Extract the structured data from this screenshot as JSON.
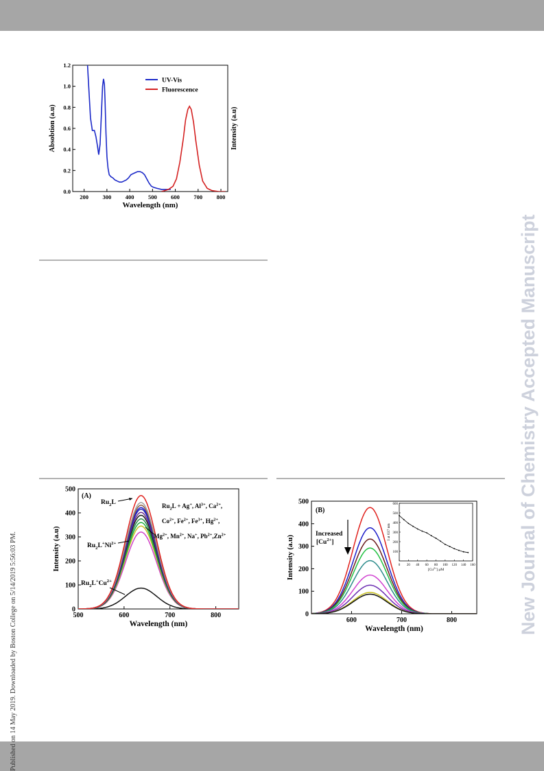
{
  "watermark": {
    "published_note": "Published on 14 May 2019. Downloaded by Boston College on 5/14/2019 5:56:03 PM.",
    "journal_side": "New Journal of Chemistry Accepted Manuscript"
  },
  "chart_data": [
    {
      "type": "line",
      "panel_label": "",
      "xlabel": "Wavelength (nm)",
      "ylabel": "Absobtion (a.u)",
      "y2label": "Intensity (a.u)",
      "xlim": [
        150,
        830
      ],
      "ylim": [
        0,
        1.2
      ],
      "xticks": [
        200,
        300,
        400,
        500,
        600,
        700,
        800
      ],
      "yticks": [
        "0.0",
        "0.2",
        "0.4",
        "0.6",
        "0.8",
        "1.0",
        "1.2"
      ],
      "legend_position": "top-right",
      "series": [
        {
          "name": "UV-Vis",
          "color": "#1a28c8",
          "x": [
            215,
            220,
            228,
            236,
            245,
            252,
            258,
            264,
            270,
            276,
            281,
            285,
            289,
            292,
            296,
            300,
            305,
            310,
            318,
            326,
            335,
            345,
            355,
            365,
            375,
            385,
            395,
            405,
            415,
            425,
            435,
            445,
            455,
            465,
            475,
            485,
            495,
            505,
            520,
            540,
            560,
            580
          ],
          "y": [
            1.2,
            1.0,
            0.7,
            0.58,
            0.58,
            0.52,
            0.44,
            0.35,
            0.45,
            0.75,
            1.0,
            1.07,
            1.02,
            0.85,
            0.55,
            0.33,
            0.22,
            0.16,
            0.14,
            0.13,
            0.11,
            0.1,
            0.09,
            0.09,
            0.1,
            0.11,
            0.13,
            0.16,
            0.17,
            0.18,
            0.19,
            0.19,
            0.18,
            0.16,
            0.12,
            0.08,
            0.05,
            0.04,
            0.03,
            0.02,
            0.02,
            0.02
          ]
        },
        {
          "name": "Fluorescence",
          "color": "#d42020",
          "x": [
            540,
            570,
            590,
            605,
            620,
            635,
            645,
            655,
            662,
            670,
            680,
            690,
            705,
            720,
            740,
            760,
            790,
            820
          ],
          "y": [
            0.0,
            0.02,
            0.05,
            0.12,
            0.28,
            0.5,
            0.68,
            0.78,
            0.81,
            0.78,
            0.66,
            0.48,
            0.25,
            0.1,
            0.03,
            0.01,
            0.0,
            0.0
          ]
        }
      ]
    },
    {
      "type": "line",
      "panel_label": "(A)",
      "xlabel": "Wavelength (nm)",
      "ylabel": "Intensity (a.u)",
      "xlim": [
        500,
        850
      ],
      "ylim": [
        0,
        500
      ],
      "xticks": [
        500,
        600,
        700,
        800
      ],
      "yticks": [
        0,
        100,
        200,
        300,
        400,
        500
      ],
      "peak_wavelength": 637,
      "peak_width": 34,
      "series": [
        {
          "peak": 472,
          "color": "#e0201c"
        },
        {
          "peak": 443,
          "color": "#a0a0a0"
        },
        {
          "peak": 432,
          "color": "#8c5a3c"
        },
        {
          "peak": 422,
          "color": "#1a1ac8"
        },
        {
          "peak": 415,
          "color": "#2d2db4"
        },
        {
          "peak": 402,
          "color": "#6a2a8a"
        },
        {
          "peak": 390,
          "color": "#1a1a1a"
        },
        {
          "peak": 375,
          "color": "#2a8a4a"
        },
        {
          "peak": 360,
          "color": "#20b040"
        },
        {
          "peak": 345,
          "color": "#c8c020"
        },
        {
          "peak": 320,
          "color": "#d040c8"
        },
        {
          "peak": 87,
          "color": "#111111"
        }
      ],
      "annotations": [
        {
          "label": "Ru2L"
        },
        {
          "label": "Ru2L+Ni2+"
        },
        {
          "label": "Ru2L+Cu2+"
        }
      ],
      "ion_list": {
        "line1": "Ru2L + Ag+, Al3+, Ca2+,",
        "line2": "Co2+, Fe2+, Fe3+, Hg2+,",
        "line3": "Mg2+, Mn2+, Na+, Pb2+,Zn2+"
      }
    },
    {
      "type": "line",
      "panel_label": "(B)",
      "xlabel": "Wavelength (nm)",
      "ylabel": "Intensity (a.u)",
      "xlim": [
        520,
        850
      ],
      "ylim": [
        0,
        500
      ],
      "xticks": [
        600,
        700,
        800
      ],
      "yticks": [
        0,
        100,
        200,
        300,
        400,
        500
      ],
      "peak_wavelength": 637,
      "peak_width": 34,
      "annotation": {
        "line1": "Increased",
        "line2": "[Cu2+]"
      },
      "series": [
        {
          "peak": 472,
          "color": "#e0201c"
        },
        {
          "peak": 382,
          "color": "#1a1ac8"
        },
        {
          "peak": 332,
          "color": "#6a1a1a"
        },
        {
          "peak": 292,
          "color": "#20c040"
        },
        {
          "peak": 236,
          "color": "#2a8a8a"
        },
        {
          "peak": 172,
          "color": "#d040d0"
        },
        {
          "peak": 127,
          "color": "#6a2ab0"
        },
        {
          "peak": 95,
          "color": "#c8c020"
        },
        {
          "peak": 87,
          "color": "#111111"
        }
      ],
      "inset": {
        "xlabel": "[Cu2+] μM",
        "ylabel": "I at 637 nm",
        "xlim": [
          0,
          160
        ],
        "ylim": [
          0,
          600
        ],
        "xticks": [
          0,
          20,
          40,
          60,
          80,
          100,
          120,
          140,
          160
        ],
        "yticks": [
          100,
          200,
          300,
          400,
          500,
          600
        ],
        "x": [
          0,
          10,
          20,
          30,
          40,
          50,
          60,
          70,
          80,
          90,
          100,
          110,
          120,
          130,
          140,
          150
        ],
        "y": [
          472,
          430,
          390,
          360,
          332,
          310,
          292,
          262,
          236,
          205,
          172,
          150,
          127,
          110,
          95,
          87
        ]
      }
    }
  ]
}
